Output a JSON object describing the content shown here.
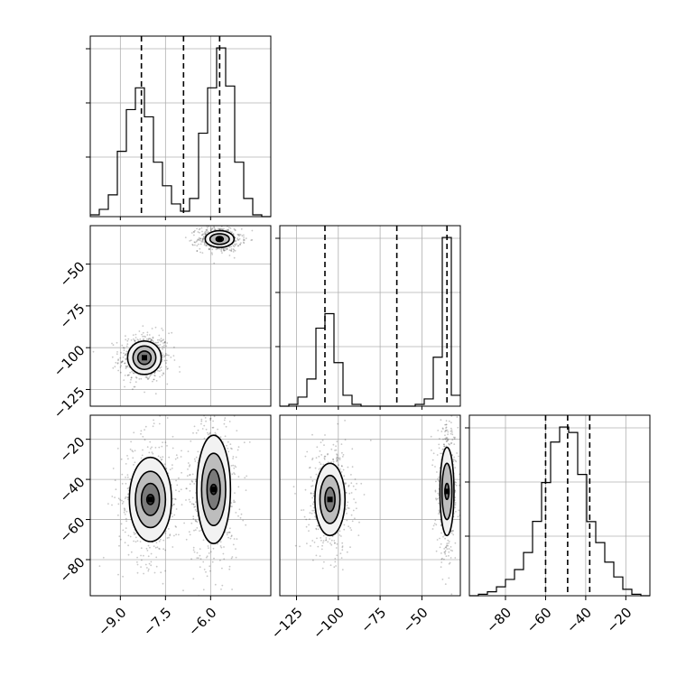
{
  "chart_data": {
    "type": "corner",
    "parameters": [
      {
        "range": [
          -10.0,
          -4.0
        ],
        "ticks": [
          -9.0,
          -7.5,
          -6.0
        ],
        "tick_labels": [
          "−9.0",
          "−7.5",
          "−6.0"
        ],
        "quantiles": [
          -8.3,
          -6.9,
          -5.7
        ]
      },
      {
        "range": [
          -135,
          -27
        ],
        "ticks": [
          -125,
          -100,
          -75,
          -50
        ],
        "tick_labels": [
          "−125",
          "−100",
          "−75",
          "−50"
        ],
        "quantiles": [
          -108,
          -65,
          -35
        ]
      },
      {
        "range": [
          -98,
          -8
        ],
        "ticks": [
          -80,
          -60,
          -40,
          -20
        ],
        "tick_labels": [
          "−80",
          "−60",
          "−40",
          "−20"
        ],
        "quantiles": [
          -60,
          -49,
          -38
        ]
      }
    ],
    "histograms": [
      {
        "param": 0,
        "edges": [
          -10.0,
          -9.7,
          -9.4,
          -9.1,
          -8.8,
          -8.5,
          -8.2,
          -7.9,
          -7.6,
          -7.3,
          -7.0,
          -6.7,
          -6.4,
          -6.1,
          -5.8,
          -5.5,
          -5.2,
          -4.9,
          -4.6,
          -4.3,
          -4.0
        ],
        "counts": [
          0.01,
          0.04,
          0.12,
          0.36,
          0.59,
          0.71,
          0.55,
          0.3,
          0.17,
          0.07,
          0.03,
          0.1,
          0.46,
          0.71,
          0.93,
          0.72,
          0.3,
          0.1,
          0.01,
          0.0
        ]
      },
      {
        "param": 1,
        "edges": [
          -135.0,
          -129.6,
          -124.2,
          -118.8,
          -113.4,
          -108.0,
          -102.6,
          -97.2,
          -91.8,
          -86.4,
          -81.0,
          -75.6,
          -70.2,
          -64.8,
          -59.4,
          -54.0,
          -48.6,
          -43.2,
          -37.8,
          -32.4,
          -27.0
        ],
        "counts": [
          0.0,
          0.01,
          0.05,
          0.15,
          0.43,
          0.51,
          0.24,
          0.06,
          0.01,
          0.0,
          0.0,
          0.0,
          0.0,
          0.0,
          0.0,
          0.01,
          0.04,
          0.27,
          0.93,
          0.06
        ]
      },
      {
        "param": 2,
        "edges": [
          -98.0,
          -93.5,
          -89.0,
          -84.5,
          -80.0,
          -75.5,
          -71.0,
          -66.5,
          -62.0,
          -57.5,
          -53.0,
          -48.5,
          -44.0,
          -39.5,
          -35.0,
          -30.5,
          -26.0,
          -21.5,
          -17.0,
          -12.5,
          -8.0
        ],
        "counts": [
          0.0,
          0.006,
          0.016,
          0.036,
          0.066,
          0.106,
          0.175,
          0.301,
          0.458,
          0.622,
          0.683,
          0.661,
          0.491,
          0.3,
          0.215,
          0.136,
          0.076,
          0.026,
          0.006,
          0.0
        ]
      }
    ],
    "joint": [
      {
        "x_param": 0,
        "y_param": 1,
        "modes": [
          {
            "center": [
              -8.2,
              -106
            ],
            "x_sd": [
              0.22,
              0.38,
              0.56
            ],
            "y_sd": [
              4,
              7,
              10
            ]
          },
          {
            "center": [
              -5.7,
              -35
            ],
            "x_sd": [
              0.12,
              0.32,
              0.48
            ],
            "y_sd": [
              1.5,
              3.2,
              5
            ]
          }
        ]
      },
      {
        "x_param": 0,
        "y_param": 2,
        "modes": [
          {
            "center": [
              -8.0,
              -50
            ],
            "x_sd": [
              0.12,
              0.3,
              0.5,
              0.7
            ],
            "y_sd": [
              2.5,
              8,
              14,
              21
            ]
          },
          {
            "center": [
              -5.9,
              -45
            ],
            "x_sd": [
              0.1,
              0.22,
              0.4,
              0.56
            ],
            "y_sd": [
              2.5,
              10,
              18,
              27
            ]
          }
        ]
      },
      {
        "x_param": 1,
        "y_param": 2,
        "modes": [
          {
            "center": [
              -105,
              -50
            ],
            "x_sd": [
              3,
              6,
              9
            ],
            "y_sd": [
              6,
              12,
              18
            ]
          },
          {
            "center": [
              -35,
              -46
            ],
            "x_sd": [
              1.2,
              3.0,
              4.2
            ],
            "y_sd": [
              4,
              14,
              22
            ]
          }
        ]
      }
    ]
  }
}
